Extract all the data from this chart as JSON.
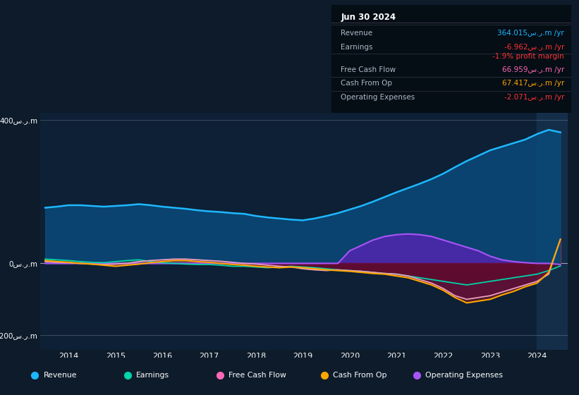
{
  "bg_color": "#0d1b2a",
  "plot_bg_color": "#0d2035",
  "info_box": {
    "header": "Jun 30 2024",
    "rows": [
      {
        "label": "Revenue",
        "value": "364.015س.ر.m /yr",
        "value_color": "#1eb8ff",
        "separator_after": true
      },
      {
        "label": "Earnings",
        "value": "-6.962س.ر.m /yr",
        "value_color": "#ff3333",
        "separator_after": false
      },
      {
        "label": "",
        "value": "-1.9% profit margin",
        "value_color": "#ff3333",
        "separator_after": true
      },
      {
        "label": "Free Cash Flow",
        "value": "66.959س.ر.m /yr",
        "value_color": "#ff69b4",
        "separator_after": true
      },
      {
        "label": "Cash From Op",
        "value": "67.417س.ر.m /yr",
        "value_color": "#ffa500",
        "separator_after": true
      },
      {
        "label": "Operating Expenses",
        "value": "-2.071س.ر.m /yr",
        "value_color": "#ff3333",
        "separator_after": false
      }
    ]
  },
  "legend": [
    {
      "label": "Revenue",
      "color": "#1eb8ff"
    },
    {
      "label": "Earnings",
      "color": "#00d4aa"
    },
    {
      "label": "Free Cash Flow",
      "color": "#ff69b4"
    },
    {
      "label": "Cash From Op",
      "color": "#ffa500"
    },
    {
      "label": "Operating Expenses",
      "color": "#a855f7"
    }
  ],
  "x": [
    2013.5,
    2013.75,
    2014.0,
    2014.25,
    2014.5,
    2014.75,
    2015.0,
    2015.25,
    2015.5,
    2015.75,
    2016.0,
    2016.25,
    2016.5,
    2016.75,
    2017.0,
    2017.25,
    2017.5,
    2017.75,
    2018.0,
    2018.25,
    2018.5,
    2018.75,
    2019.0,
    2019.25,
    2019.5,
    2019.75,
    2020.0,
    2020.25,
    2020.5,
    2020.75,
    2021.0,
    2021.25,
    2021.5,
    2021.75,
    2022.0,
    2022.25,
    2022.5,
    2022.75,
    2023.0,
    2023.25,
    2023.5,
    2023.75,
    2024.0,
    2024.25,
    2024.5
  ],
  "revenue": [
    155,
    158,
    162,
    162,
    160,
    158,
    160,
    162,
    165,
    162,
    158,
    155,
    152,
    148,
    145,
    143,
    140,
    138,
    132,
    128,
    125,
    122,
    120,
    125,
    132,
    140,
    150,
    160,
    172,
    185,
    198,
    210,
    222,
    235,
    250,
    268,
    285,
    300,
    315,
    325,
    335,
    345,
    360,
    372,
    365
  ],
  "earnings": [
    12,
    10,
    8,
    5,
    3,
    2,
    5,
    8,
    10,
    5,
    2,
    0,
    -2,
    -3,
    -3,
    -5,
    -8,
    -8,
    -10,
    -12,
    -10,
    -8,
    -10,
    -12,
    -15,
    -18,
    -20,
    -22,
    -25,
    -28,
    -30,
    -35,
    -40,
    -45,
    -50,
    -55,
    -60,
    -55,
    -50,
    -45,
    -40,
    -35,
    -30,
    -20,
    -7
  ],
  "free_cash_flow": [
    5,
    3,
    2,
    0,
    -2,
    -3,
    -2,
    0,
    5,
    8,
    10,
    12,
    12,
    10,
    8,
    6,
    3,
    0,
    -2,
    -5,
    -8,
    -10,
    -15,
    -18,
    -20,
    -18,
    -20,
    -22,
    -25,
    -28,
    -30,
    -35,
    -45,
    -55,
    -70,
    -90,
    -100,
    -95,
    -90,
    -80,
    -70,
    -60,
    -50,
    -30,
    67
  ],
  "cash_from_op": [
    8,
    5,
    3,
    0,
    -2,
    -5,
    -8,
    -5,
    -2,
    2,
    5,
    8,
    8,
    5,
    3,
    0,
    -3,
    -5,
    -8,
    -10,
    -12,
    -10,
    -12,
    -15,
    -18,
    -20,
    -22,
    -25,
    -28,
    -30,
    -35,
    -40,
    -50,
    -60,
    -75,
    -95,
    -110,
    -105,
    -100,
    -88,
    -78,
    -65,
    -55,
    -25,
    67
  ],
  "op_expenses": [
    0,
    0,
    0,
    0,
    0,
    0,
    0,
    0,
    0,
    0,
    0,
    0,
    0,
    0,
    0,
    0,
    0,
    0,
    0,
    0,
    0,
    0,
    0,
    0,
    0,
    0,
    35,
    50,
    65,
    75,
    80,
    82,
    80,
    75,
    65,
    55,
    45,
    35,
    20,
    10,
    5,
    2,
    0,
    0,
    -3
  ],
  "shade_x_start": 2024.0,
  "xlim": [
    2013.4,
    2024.65
  ],
  "ylim": [
    -240,
    420
  ],
  "yticks": [
    400,
    0,
    -200
  ],
  "ytick_labels": [
    "400س.ر.m",
    "0س.ر.m",
    "-200س.ر.m"
  ],
  "xticks": [
    2014,
    2015,
    2016,
    2017,
    2018,
    2019,
    2020,
    2021,
    2022,
    2023,
    2024
  ]
}
